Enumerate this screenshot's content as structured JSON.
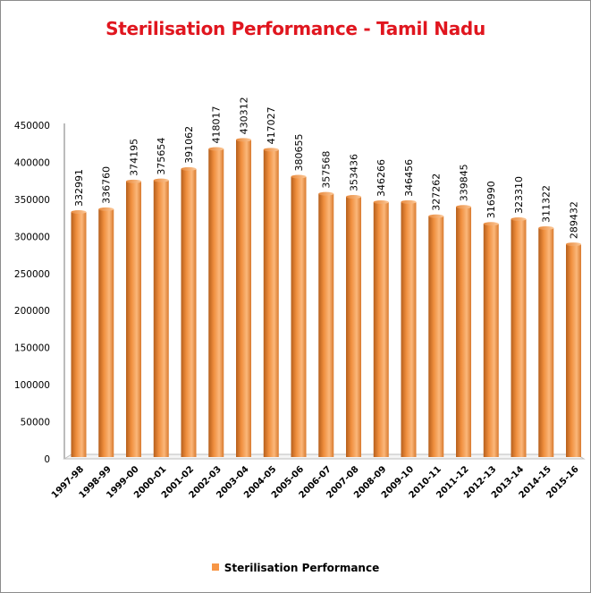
{
  "chart_data": {
    "type": "bar",
    "title": "Sterilisation Performance - Tamil Nadu",
    "xlabel": "",
    "ylabel": "",
    "ylim": [
      0,
      450000
    ],
    "yticks": [
      0,
      50000,
      100000,
      150000,
      200000,
      250000,
      300000,
      350000,
      400000,
      450000
    ],
    "grid": false,
    "legend_position": "bottom",
    "categories": [
      "1997-98",
      "1998-99",
      "1999-00",
      "2000-01",
      "2001-02",
      "2002-03",
      "2003-04",
      "2004-05",
      "2005-06",
      "2006-07",
      "2007-08",
      "2008-09",
      "2009-10",
      "2010-11",
      "2011-12",
      "2012-13",
      "2013-14",
      "2014-15",
      "2015-16"
    ],
    "series": [
      {
        "name": "Sterilisation Performance",
        "color": "#f79646",
        "values": [
          332991,
          336760,
          374195,
          375654,
          391062,
          418017,
          430312,
          417027,
          380655,
          357568,
          353436,
          346266,
          346456,
          327262,
          339845,
          316990,
          323310,
          311322,
          289432
        ]
      }
    ]
  },
  "colors": {
    "title": "#e0161f",
    "bar": "#f79646",
    "bar_dark": "#b65f1c",
    "bar_light": "#fbb77a"
  }
}
